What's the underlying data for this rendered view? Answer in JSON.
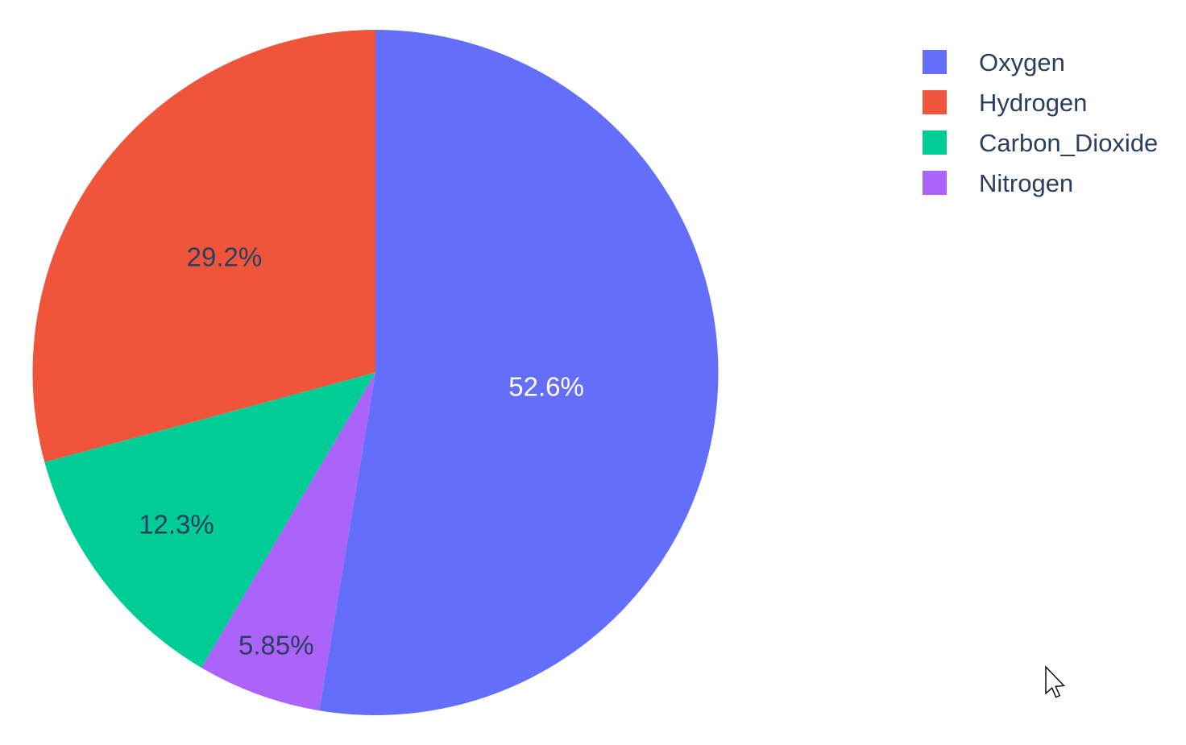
{
  "chart_data": {
    "type": "pie",
    "labels": [
      "Oxygen",
      "Hydrogen",
      "Carbon_Dioxide",
      "Nitrogen"
    ],
    "values": [
      52.6,
      29.2,
      12.3,
      5.85
    ],
    "display_percents": [
      "52.6%",
      "29.2%",
      "12.3%",
      "5.85%"
    ],
    "colors": [
      "#636efa",
      "#ef553b",
      "#00cc96",
      "#ab63fa"
    ],
    "label_colors": [
      "#ffffff",
      "#2a3f5f",
      "#2a3f5f",
      "#2a3f5f"
    ],
    "title": "",
    "legend_position": "top-right",
    "legend_entries": [
      "Oxygen",
      "Hydrogen",
      "Carbon_Dioxide",
      "Nitrogen"
    ],
    "background": "#ffffff",
    "text_color": "#2a3f5f"
  },
  "icons": {
    "cursor": "arrow-pointer-icon"
  }
}
